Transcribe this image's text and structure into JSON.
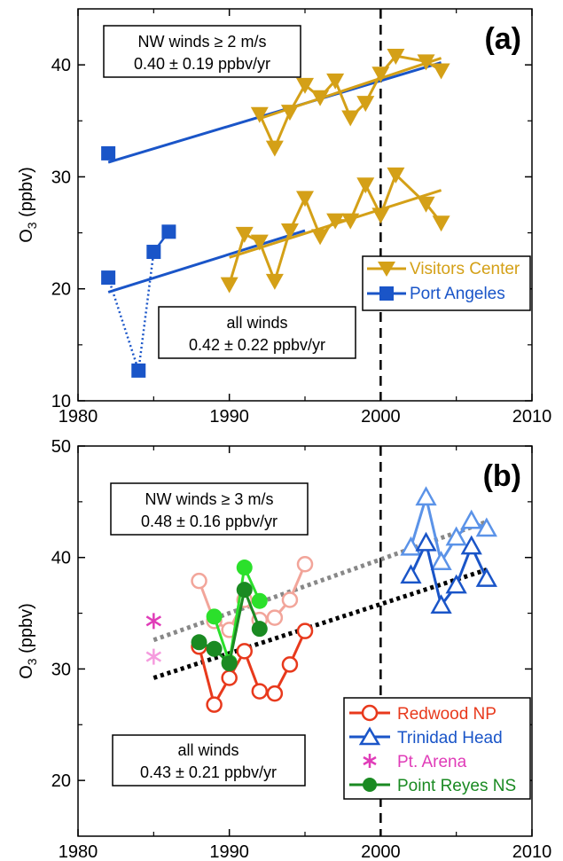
{
  "colors": {
    "visitors": "#D4A017",
    "port_angeles": "#1A55C8",
    "redwood_dark": "#E8391C",
    "redwood_light": "#F2A59A",
    "trinidad_dark": "#1A55C8",
    "trinidad_light": "#5B93E8",
    "arena_dark": "#E03CB8",
    "arena_light": "#F59BDE",
    "reyes_dark": "#1A8A22",
    "reyes_light": "#2BE02B",
    "trend_gray": "#888888",
    "trend_black": "#000000"
  },
  "chart_data": [
    {
      "type": "line",
      "panel_label": "(a)",
      "ylabel_main": "O",
      "ylabel_sub": "3",
      "ylabel_unit": " (ppbv)",
      "xlim": [
        1980,
        2010
      ],
      "ylim": [
        10,
        45
      ],
      "xticks": [
        "1980",
        "1990",
        "2000",
        "2010"
      ],
      "xtick_values": [
        1980,
        1990,
        2000,
        2010
      ],
      "yticks": [
        "10",
        "20",
        "30",
        "40"
      ],
      "ytick_values": [
        10,
        20,
        30,
        40
      ],
      "vline_x": 2000,
      "annotations": [
        {
          "line1": "NW winds ≥ 2 m/s",
          "line2": "0.40 ± 0.19  ppbv/yr"
        },
        {
          "line1": "all winds",
          "line2": "0.42 ± 0.22  ppbv/yr"
        }
      ],
      "legend": [
        {
          "name": "Visitors Center",
          "marker": "triangle-down",
          "color_key": "visitors"
        },
        {
          "name": "Port Angeles",
          "marker": "square",
          "color_key": "port_angeles"
        }
      ],
      "series": [
        {
          "name": "Visitors Center",
          "subset": "NW winds ≥ 2 m/s",
          "x": [
            1992,
            1993,
            1994,
            1995,
            1996,
            1997,
            1998,
            1999,
            2000,
            2001,
            2003,
            2004
          ],
          "y": [
            35.6,
            32.6,
            35.8,
            38.2,
            37.1,
            38.6,
            35.3,
            36.6,
            39.2,
            40.8,
            40.3,
            39.5
          ]
        },
        {
          "name": "Visitors Center",
          "subset": "all winds",
          "x": [
            1990,
            1991,
            1992,
            1993,
            1994,
            1995,
            1996,
            1997,
            1998,
            1999,
            2000,
            2001,
            2003,
            2004
          ],
          "y": [
            20.4,
            24.9,
            24.2,
            20.7,
            25.2,
            28.1,
            24.7,
            26.1,
            26.1,
            29.3,
            26.6,
            30.2,
            27.6,
            25.9
          ]
        },
        {
          "name": "Port Angeles",
          "subset": "NW winds ≥ 2 m/s",
          "x": [
            1982
          ],
          "y": [
            32.1
          ]
        },
        {
          "name": "Port Angeles",
          "subset": "all winds",
          "x": [
            1982,
            1984,
            1985,
            1986
          ],
          "y": [
            21.0,
            12.7,
            23.3,
            25.1
          ]
        }
      ],
      "trends": [
        {
          "name": "Port Angeles NW trend",
          "x": [
            1982,
            2004
          ],
          "y": [
            31.3,
            40.2
          ]
        },
        {
          "name": "Port Angeles all trend",
          "x": [
            1982,
            1995
          ],
          "y": [
            19.7,
            25.2
          ]
        },
        {
          "name": "Visitors NW trend",
          "x": [
            1992,
            2004
          ],
          "y": [
            35.2,
            40.6
          ]
        },
        {
          "name": "Visitors all trend",
          "x": [
            1990,
            2004
          ],
          "y": [
            22.8,
            28.8
          ]
        }
      ]
    },
    {
      "type": "line",
      "panel_label": "(b)",
      "ylabel_main": "O",
      "ylabel_sub": "3",
      "ylabel_unit": " (ppbv)",
      "xlim": [
        1980,
        2010
      ],
      "ylim": [
        15,
        50
      ],
      "xticks": [
        "1980",
        "1990",
        "2000",
        "2010"
      ],
      "xtick_values": [
        1980,
        1990,
        2000,
        2010
      ],
      "yticks": [
        "20",
        "30",
        "40",
        "50"
      ],
      "ytick_values": [
        20,
        30,
        40,
        50
      ],
      "vline_x": 2000,
      "annotations": [
        {
          "line1": "NW winds ≥ 3 m/s",
          "line2": "0.48 ± 0.16  ppbv/yr"
        },
        {
          "line1": "all winds",
          "line2": "0.43 ± 0.21  ppbv/yr"
        }
      ],
      "legend": [
        {
          "name": "Redwood NP",
          "marker": "circle-open",
          "color_key": "redwood_dark"
        },
        {
          "name": "Trinidad Head",
          "marker": "triangle-open",
          "color_key": "trinidad_dark"
        },
        {
          "name": "Pt. Arena",
          "marker": "asterisk",
          "color_key": "arena_dark"
        },
        {
          "name": "Point Reyes NS",
          "marker": "circle-filled",
          "color_key": "reyes_dark"
        }
      ],
      "series": [
        {
          "name": "Redwood NP",
          "subset": "NW winds ≥ 3 m/s",
          "x": [
            1988,
            1989,
            1990,
            1991,
            1992,
            1993,
            1994,
            1995
          ],
          "y": [
            37.9,
            34.3,
            33.5,
            36.2,
            34.4,
            34.6,
            36.2,
            39.4
          ]
        },
        {
          "name": "Redwood NP",
          "subset": "all winds",
          "x": [
            1988,
            1989,
            1990,
            1991,
            1992,
            1993,
            1994,
            1995
          ],
          "y": [
            32.0,
            26.8,
            29.2,
            31.6,
            28.0,
            27.8,
            30.4,
            33.4
          ]
        },
        {
          "name": "Trinidad Head",
          "subset": "NW winds ≥ 3 m/s",
          "x": [
            2002,
            2003,
            2004,
            2005,
            2006,
            2007
          ],
          "y": [
            40.9,
            45.4,
            39.6,
            41.8,
            43.3,
            42.6
          ]
        },
        {
          "name": "Trinidad Head",
          "subset": "all winds",
          "x": [
            2002,
            2003,
            2004,
            2005,
            2006,
            2007
          ],
          "y": [
            38.4,
            41.3,
            35.7,
            37.5,
            41.0,
            38.1
          ]
        },
        {
          "name": "Pt. Arena",
          "subset": "NW winds ≥ 3 m/s",
          "x": [
            1985
          ],
          "y": [
            31.1
          ]
        },
        {
          "name": "Pt. Arena",
          "subset": "all winds",
          "x": [
            1985
          ],
          "y": [
            34.3
          ]
        },
        {
          "name": "Point Reyes NS",
          "subset": "NW winds ≥ 3 m/s",
          "x": [
            1989,
            1990,
            1991,
            1992
          ],
          "y": [
            34.7,
            30.6,
            39.1,
            36.1
          ]
        },
        {
          "name": "Point Reyes NS",
          "subset": "all winds",
          "x": [
            1988,
            1989,
            1990,
            1991,
            1992
          ],
          "y": [
            32.4,
            31.8,
            30.5,
            37.1,
            33.6
          ]
        }
      ],
      "trends": [
        {
          "name": "NW trend",
          "x": [
            1985,
            2007
          ],
          "y": [
            32.6,
            43.2
          ]
        },
        {
          "name": "all trend",
          "x": [
            1985,
            2007
          ],
          "y": [
            29.2,
            38.9
          ]
        }
      ]
    }
  ]
}
